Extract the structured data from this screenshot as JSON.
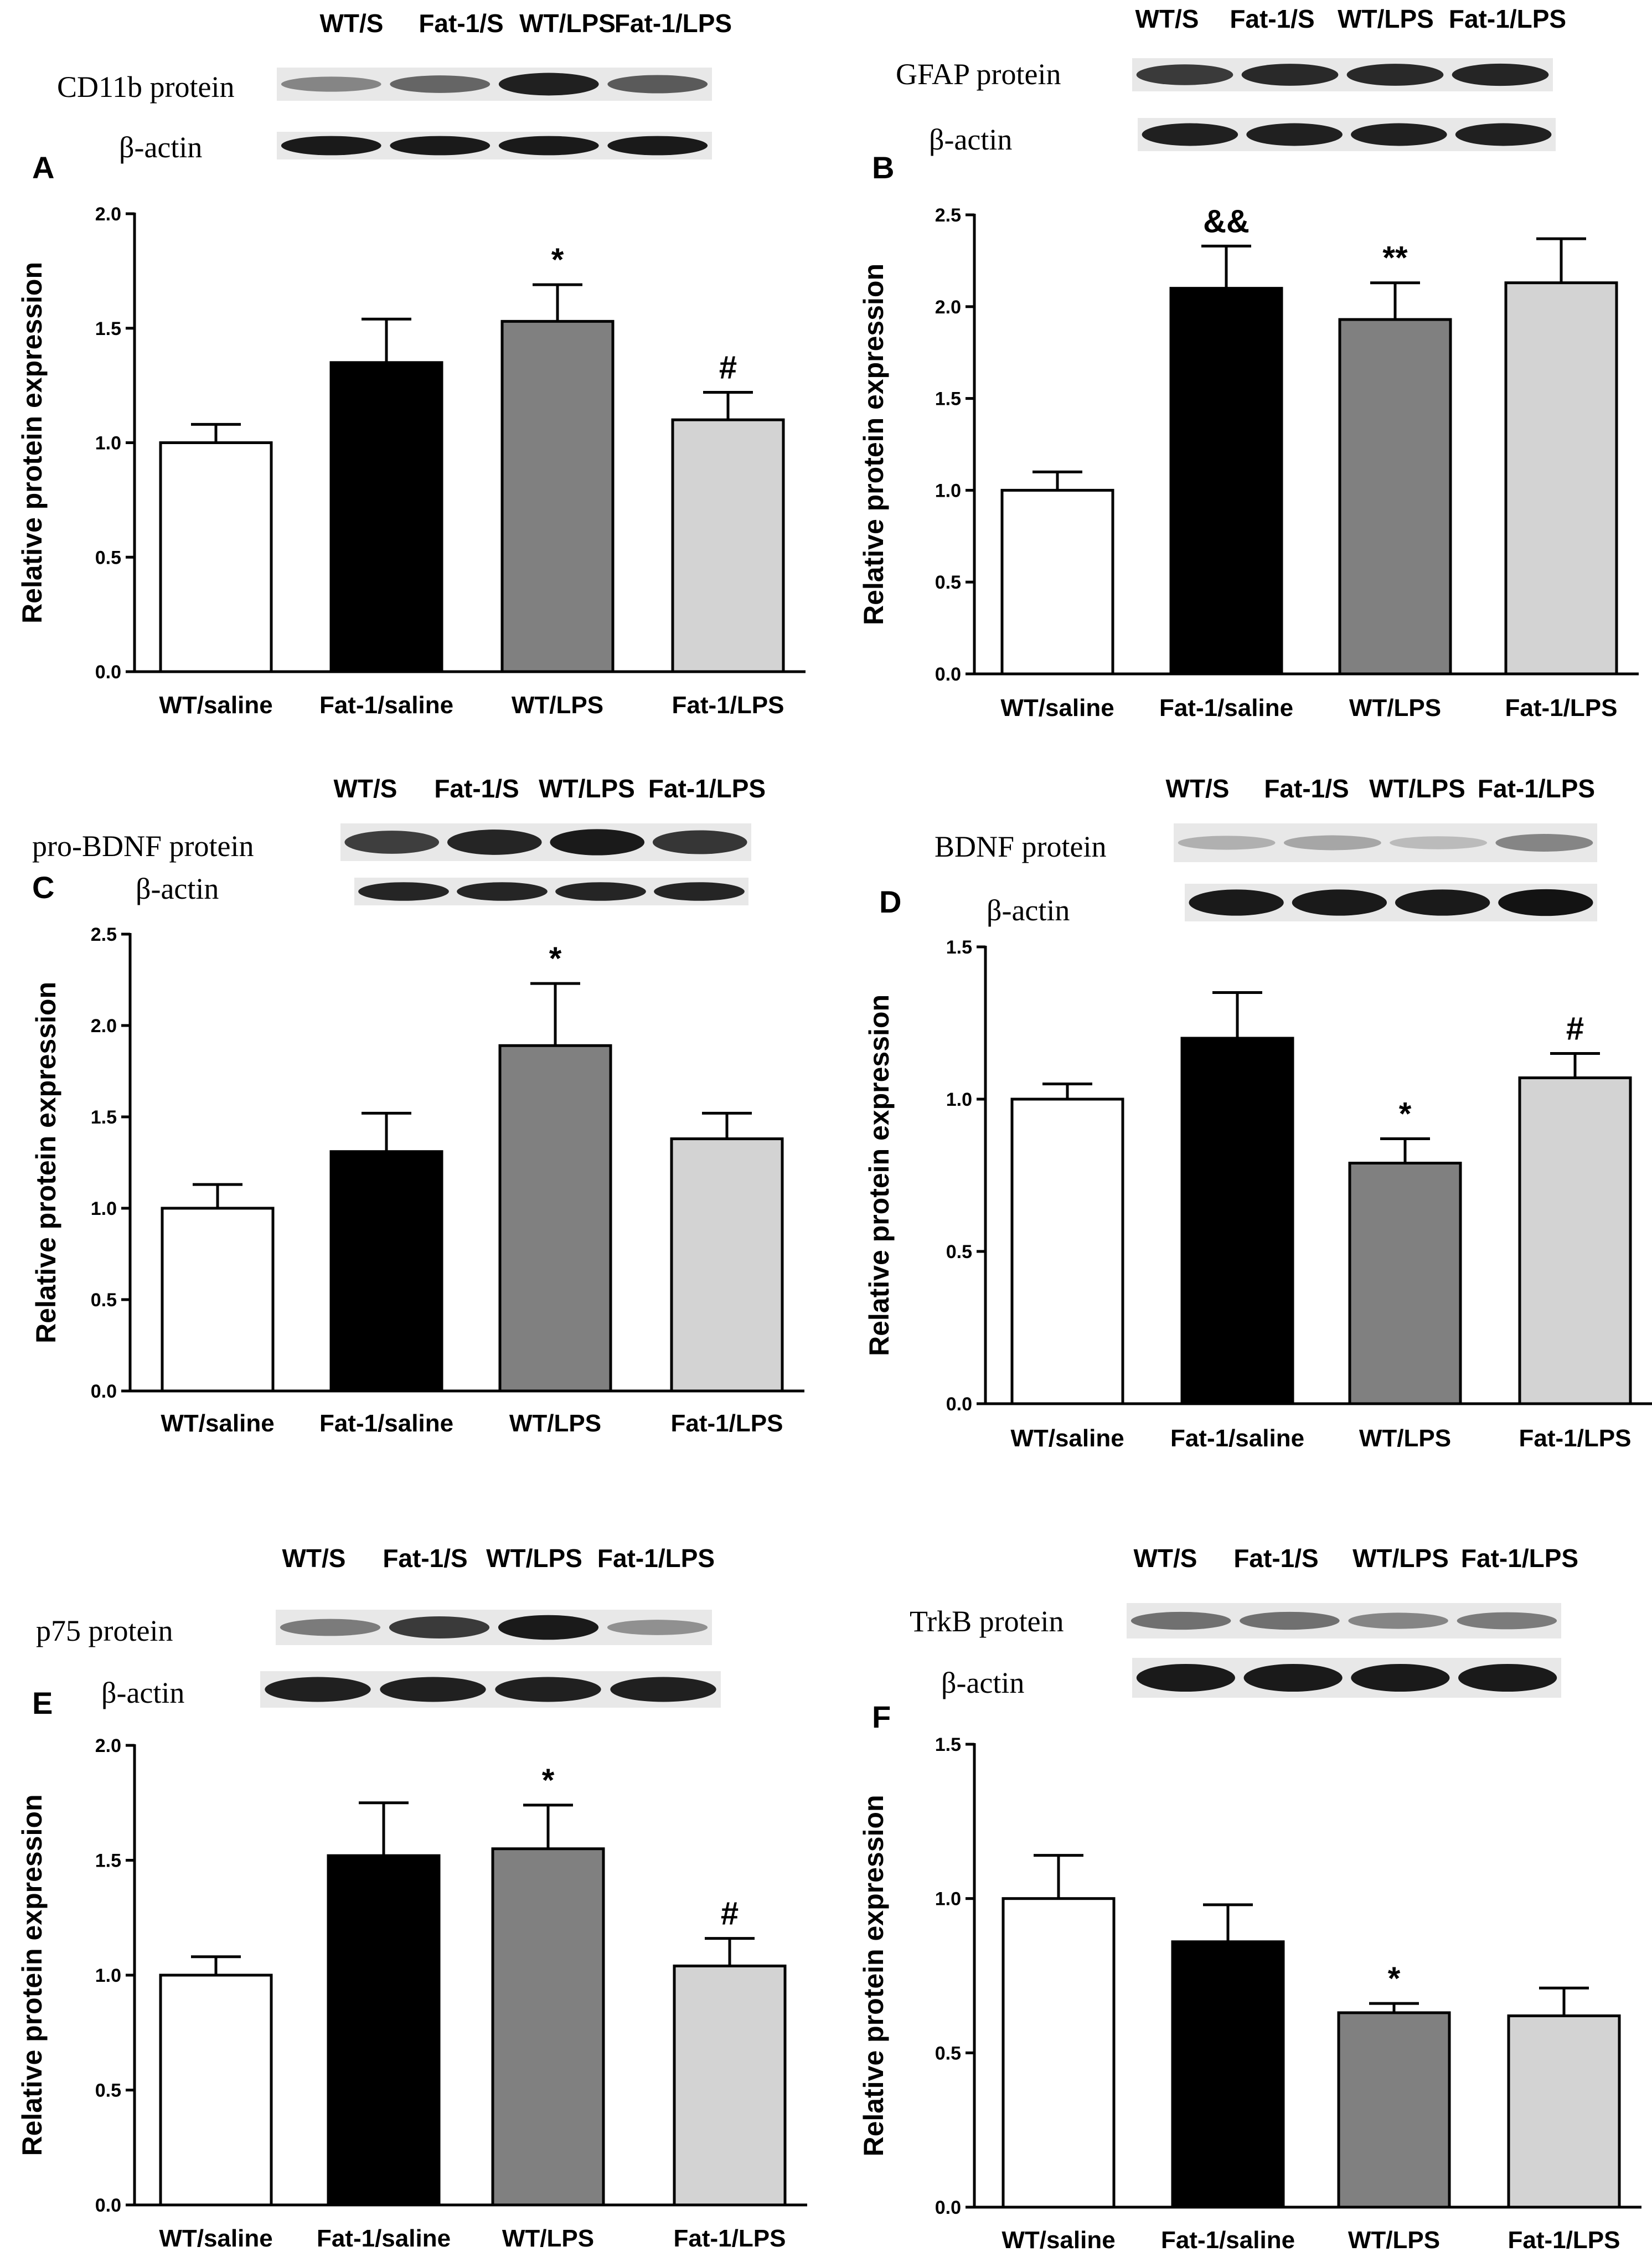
{
  "chart_data": [
    {
      "panel": "A",
      "type": "bar",
      "blot": {
        "protein_label": "CD11b protein",
        "actin_label": "β-actin",
        "lanes": [
          "WT/S",
          "Fat-1/S",
          "WT/LPS",
          "Fat-1/LPS"
        ],
        "band_intensity": [
          0.45,
          0.6,
          0.92,
          0.65
        ],
        "actin_intensity": [
          0.95,
          0.95,
          0.95,
          0.95
        ]
      },
      "categories": [
        "WT/saline",
        "Fat-1/saline",
        "WT/LPS",
        "Fat-1/LPS"
      ],
      "values": [
        1.0,
        1.35,
        1.53,
        1.1
      ],
      "errors": [
        0.08,
        0.19,
        0.16,
        0.12
      ],
      "colors": [
        "#ffffff",
        "#000000",
        "#808080",
        "#d3d3d3"
      ],
      "significance": [
        "",
        "",
        "*",
        "#"
      ],
      "ylabel": "Relative protein expression",
      "ylim": [
        0,
        2.0
      ],
      "yticks": [
        "0.0",
        "0.5",
        "1.0",
        "1.5",
        "2.0"
      ]
    },
    {
      "panel": "B",
      "type": "bar",
      "blot": {
        "protein_label": "GFAP protein",
        "actin_label": "β-actin",
        "lanes": [
          "WT/S",
          "Fat-1/S",
          "WT/LPS",
          "Fat-1/LPS"
        ],
        "band_intensity": [
          0.8,
          0.88,
          0.88,
          0.9
        ],
        "actin_intensity": [
          0.92,
          0.92,
          0.92,
          0.92
        ]
      },
      "categories": [
        "WT/saline",
        "Fat-1/saline",
        "WT/LPS",
        "Fat-1/LPS"
      ],
      "values": [
        1.0,
        2.1,
        1.93,
        2.13
      ],
      "errors": [
        0.1,
        0.23,
        0.2,
        0.24
      ],
      "colors": [
        "#ffffff",
        "#000000",
        "#808080",
        "#d3d3d3"
      ],
      "significance": [
        "",
        "&&",
        "**",
        ""
      ],
      "ylabel": "Relative protein expression",
      "ylim": [
        0,
        2.5
      ],
      "yticks": [
        "0.0",
        "0.5",
        "1.0",
        "1.5",
        "2.0",
        "2.5"
      ]
    },
    {
      "panel": "C",
      "type": "bar",
      "blot": {
        "protein_label": "pro-BDNF protein",
        "actin_label": "β-actin",
        "lanes": [
          "WT/S",
          "Fat-1/S",
          "WT/LPS",
          "Fat-1/LPS"
        ],
        "band_intensity": [
          0.78,
          0.9,
          0.95,
          0.82
        ],
        "actin_intensity": [
          0.9,
          0.9,
          0.9,
          0.9
        ]
      },
      "categories": [
        "WT/saline",
        "Fat-1/saline",
        "WT/LPS",
        "Fat-1/LPS"
      ],
      "values": [
        1.0,
        1.31,
        1.89,
        1.38
      ],
      "errors": [
        0.13,
        0.21,
        0.34,
        0.14
      ],
      "colors": [
        "#ffffff",
        "#000000",
        "#808080",
        "#d3d3d3"
      ],
      "significance": [
        "",
        "",
        "*",
        ""
      ],
      "ylabel": "Relative protein expression",
      "ylim": [
        0,
        2.5
      ],
      "yticks": [
        "0.0",
        "0.5",
        "1.0",
        "1.5",
        "2.0",
        "2.5"
      ]
    },
    {
      "panel": "D",
      "type": "bar",
      "blot": {
        "protein_label": "BDNF protein",
        "actin_label": "β-actin",
        "lanes": [
          "WT/S",
          "Fat-1/S",
          "WT/LPS",
          "Fat-1/LPS"
        ],
        "band_intensity": [
          0.25,
          0.3,
          0.2,
          0.45
        ],
        "actin_intensity": [
          0.95,
          0.95,
          0.95,
          0.98
        ]
      },
      "categories": [
        "WT/saline",
        "Fat-1/saline",
        "WT/LPS",
        "Fat-1/LPS"
      ],
      "values": [
        1.0,
        1.2,
        0.79,
        1.07
      ],
      "errors": [
        0.05,
        0.15,
        0.08,
        0.08
      ],
      "colors": [
        "#ffffff",
        "#000000",
        "#808080",
        "#d3d3d3"
      ],
      "significance": [
        "",
        "",
        "*",
        "#"
      ],
      "ylabel": "Relative protein expression",
      "ylim": [
        0,
        1.5
      ],
      "yticks": [
        "0.0",
        "0.5",
        "1.0",
        "1.5"
      ]
    },
    {
      "panel": "E",
      "type": "bar",
      "blot": {
        "protein_label": "p75 protein",
        "actin_label": "β-actin",
        "lanes": [
          "WT/S",
          "Fat-1/S",
          "WT/LPS",
          "Fat-1/LPS"
        ],
        "band_intensity": [
          0.5,
          0.8,
          0.95,
          0.4
        ],
        "actin_intensity": [
          0.92,
          0.92,
          0.92,
          0.92
        ]
      },
      "categories": [
        "WT/saline",
        "Fat-1/saline",
        "WT/LPS",
        "Fat-1/LPS"
      ],
      "values": [
        1.0,
        1.52,
        1.55,
        1.04
      ],
      "errors": [
        0.08,
        0.23,
        0.19,
        0.12
      ],
      "colors": [
        "#ffffff",
        "#000000",
        "#808080",
        "#d3d3d3"
      ],
      "significance": [
        "",
        "",
        "*",
        "#"
      ],
      "ylabel": "Relative protein expression",
      "ylim": [
        0,
        2.0
      ],
      "yticks": [
        "0.0",
        "0.5",
        "1.0",
        "1.5",
        "2.0"
      ]
    },
    {
      "panel": "F",
      "type": "bar",
      "blot": {
        "protein_label": "TrkB protein",
        "actin_label": "β-actin",
        "lanes": [
          "WT/S",
          "Fat-1/S",
          "WT/LPS",
          "Fat-1/LPS"
        ],
        "band_intensity": [
          0.55,
          0.55,
          0.45,
          0.5
        ],
        "actin_intensity": [
          0.95,
          0.95,
          0.95,
          0.95
        ]
      },
      "categories": [
        "WT/saline",
        "Fat-1/saline",
        "WT/LPS",
        "Fat-1/LPS"
      ],
      "values": [
        1.0,
        0.86,
        0.63,
        0.62
      ],
      "errors": [
        0.14,
        0.12,
        0.03,
        0.09
      ],
      "colors": [
        "#ffffff",
        "#000000",
        "#808080",
        "#d3d3d3"
      ],
      "significance": [
        "",
        "",
        "*",
        ""
      ],
      "ylabel": "Relative protein expression",
      "ylim": [
        0,
        1.5
      ],
      "yticks": [
        "0.0",
        "0.5",
        "1.0",
        "1.5"
      ]
    }
  ]
}
